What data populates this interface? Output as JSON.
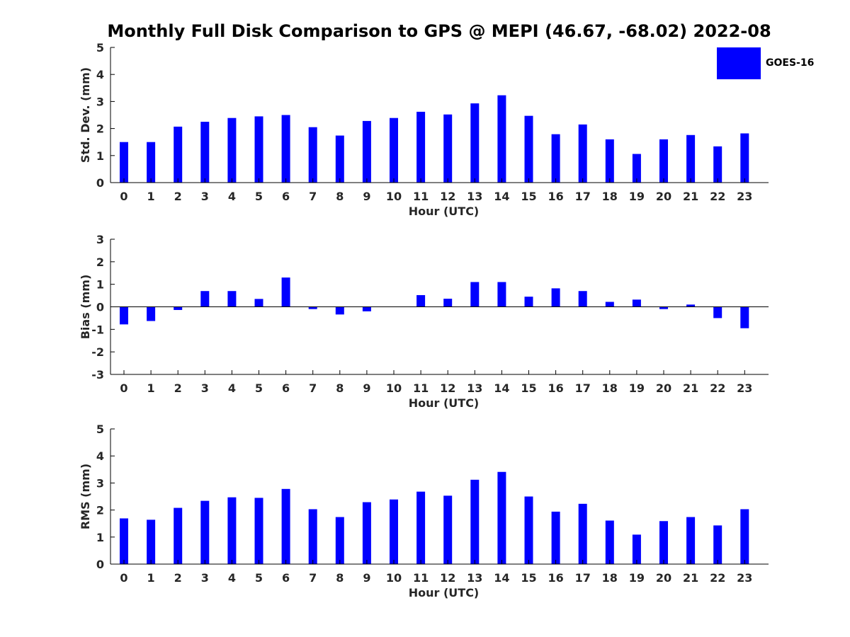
{
  "title": "Monthly Full Disk Comparison to GPS @ MEPI (46.67, -68.02) 2022-08",
  "legend": {
    "label": "GOES-16",
    "color": "#0000ff"
  },
  "chart_data": [
    {
      "type": "bar",
      "series_name": "GOES-16",
      "categories": [
        "0",
        "1",
        "2",
        "3",
        "4",
        "5",
        "6",
        "7",
        "8",
        "9",
        "10",
        "11",
        "12",
        "13",
        "14",
        "15",
        "16",
        "17",
        "18",
        "19",
        "20",
        "21",
        "22",
        "23"
      ],
      "values": [
        1.5,
        1.5,
        2.07,
        2.25,
        2.39,
        2.45,
        2.5,
        2.05,
        1.74,
        2.28,
        2.39,
        2.62,
        2.52,
        2.93,
        3.23,
        2.47,
        1.79,
        2.15,
        1.6,
        1.06,
        1.6,
        1.76,
        1.34,
        1.82
      ],
      "xlabel": "Hour (UTC)",
      "ylabel": "Std. Dev. (mm)",
      "ylim": [
        0,
        5
      ],
      "yticks": [
        "0",
        "1",
        "2",
        "3",
        "4",
        "5"
      ],
      "grid": false
    },
    {
      "type": "bar",
      "series_name": "GOES-16",
      "categories": [
        "0",
        "1",
        "2",
        "3",
        "4",
        "5",
        "6",
        "7",
        "8",
        "9",
        "10",
        "11",
        "12",
        "13",
        "14",
        "15",
        "16",
        "17",
        "18",
        "19",
        "20",
        "21",
        "22",
        "23"
      ],
      "values": [
        -0.78,
        -0.63,
        -0.14,
        0.7,
        0.7,
        0.35,
        1.3,
        -0.1,
        -0.34,
        -0.2,
        0.0,
        0.52,
        0.36,
        1.1,
        1.1,
        0.45,
        0.82,
        0.7,
        0.22,
        0.32,
        -0.1,
        0.1,
        -0.5,
        -0.95
      ],
      "xlabel": "Hour (UTC)",
      "ylabel": "Bias (mm)",
      "ylim": [
        -3,
        3
      ],
      "yticks": [
        "-3",
        "-2",
        "-1",
        "0",
        "1",
        "2",
        "3"
      ],
      "grid": false
    },
    {
      "type": "bar",
      "series_name": "GOES-16",
      "categories": [
        "0",
        "1",
        "2",
        "3",
        "4",
        "5",
        "6",
        "7",
        "8",
        "9",
        "10",
        "11",
        "12",
        "13",
        "14",
        "15",
        "16",
        "17",
        "18",
        "19",
        "20",
        "21",
        "22",
        "23"
      ],
      "values": [
        1.69,
        1.64,
        2.08,
        2.34,
        2.47,
        2.45,
        2.78,
        2.03,
        1.74,
        2.29,
        2.39,
        2.68,
        2.53,
        3.12,
        3.41,
        2.5,
        1.94,
        2.23,
        1.61,
        1.09,
        1.59,
        1.74,
        1.43,
        2.03
      ],
      "xlabel": "Hour (UTC)",
      "ylabel": "RMS (mm)",
      "ylim": [
        0,
        5
      ],
      "yticks": [
        "0",
        "1",
        "2",
        "3",
        "4",
        "5"
      ],
      "grid": false
    }
  ]
}
